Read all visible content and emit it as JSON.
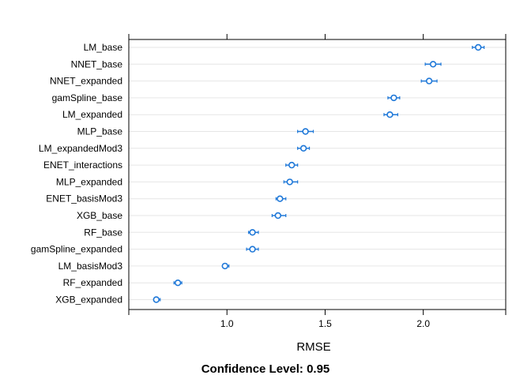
{
  "chart_data": {
    "type": "dotplot",
    "xlabel": "RMSE",
    "caption": "Confidence Level: 0.95",
    "xlim": [
      0.5,
      2.42
    ],
    "ticks": [
      1.0,
      1.5,
      2.0
    ],
    "tick_labels": [
      "1.0",
      "1.5",
      "2.0"
    ],
    "grid": "horizontal",
    "color": "#1f78d8",
    "points": [
      {
        "label": "LM_base",
        "value": 2.28,
        "lower": 2.25,
        "upper": 2.31
      },
      {
        "label": "NNET_base",
        "value": 2.05,
        "lower": 2.01,
        "upper": 2.09
      },
      {
        "label": "NNET_expanded",
        "value": 2.03,
        "lower": 1.99,
        "upper": 2.07
      },
      {
        "label": "gamSpline_base",
        "value": 1.85,
        "lower": 1.82,
        "upper": 1.88
      },
      {
        "label": "LM_expanded",
        "value": 1.83,
        "lower": 1.8,
        "upper": 1.87
      },
      {
        "label": "MLP_base",
        "value": 1.4,
        "lower": 1.36,
        "upper": 1.44
      },
      {
        "label": "LM_expandedMod3",
        "value": 1.39,
        "lower": 1.36,
        "upper": 1.42
      },
      {
        "label": "ENET_interactions",
        "value": 1.33,
        "lower": 1.3,
        "upper": 1.36
      },
      {
        "label": "MLP_expanded",
        "value": 1.32,
        "lower": 1.29,
        "upper": 1.36
      },
      {
        "label": "ENET_basisMod3",
        "value": 1.27,
        "lower": 1.25,
        "upper": 1.3
      },
      {
        "label": "XGB_base",
        "value": 1.26,
        "lower": 1.23,
        "upper": 1.3
      },
      {
        "label": "RF_base",
        "value": 1.13,
        "lower": 1.11,
        "upper": 1.16
      },
      {
        "label": "gamSpline_expanded",
        "value": 1.13,
        "lower": 1.1,
        "upper": 1.16
      },
      {
        "label": "LM_basisMod3",
        "value": 0.99,
        "lower": 0.98,
        "upper": 1.01
      },
      {
        "label": "RF_expanded",
        "value": 0.75,
        "lower": 0.73,
        "upper": 0.77
      },
      {
        "label": "XGB_expanded",
        "value": 0.64,
        "lower": 0.63,
        "upper": 0.66
      }
    ]
  }
}
